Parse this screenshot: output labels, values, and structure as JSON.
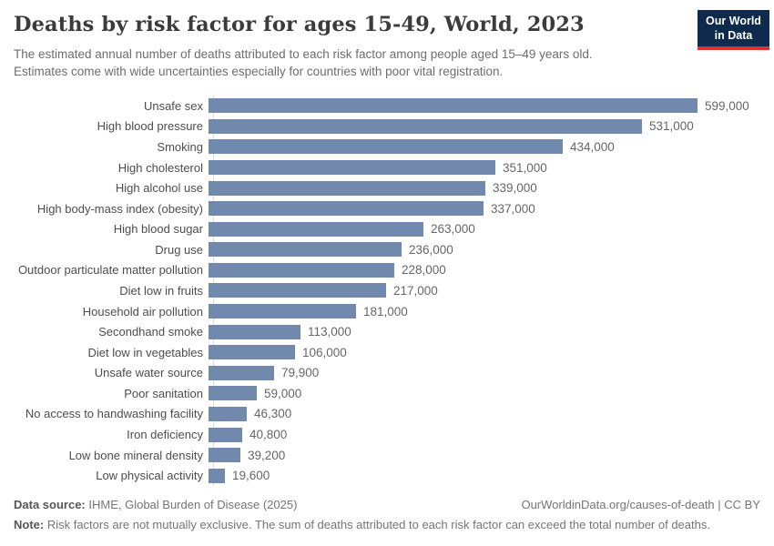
{
  "header": {
    "title": "Deaths by risk factor for ages 15-49, World, 2023",
    "subtitle_lines": [
      "The estimated annual number of deaths attributed to each risk factor among people aged 15–49 years old.",
      "Estimates come with wide uncertainties especially for countries with poor vital registration."
    ],
    "logo": {
      "line1": "Our World",
      "line2": "in Data",
      "bg_color": "#0e2a4d",
      "accent_color": "#d8352e"
    }
  },
  "chart_data": {
    "type": "bar",
    "orientation": "horizontal",
    "title": "Deaths by risk factor for ages 15-49, World, 2023",
    "xlabel": "",
    "ylabel": "",
    "xlim": [
      0,
      640000
    ],
    "grid": false,
    "legend": false,
    "bar_color": "#7289ae",
    "categories": [
      "Unsafe sex",
      "High blood pressure",
      "Smoking",
      "High cholesterol",
      "High alcohol use",
      "High body-mass index (obesity)",
      "High blood sugar",
      "Drug use",
      "Outdoor particulate matter pollution",
      "Diet low in fruits",
      "Household air pollution",
      "Secondhand smoke",
      "Diet low in vegetables",
      "Unsafe water source",
      "Poor sanitation",
      "No access to handwashing facility",
      "Iron deficiency",
      "Low bone mineral density",
      "Low physical activity"
    ],
    "values": [
      599000,
      531000,
      434000,
      351000,
      339000,
      337000,
      263000,
      236000,
      228000,
      217000,
      181000,
      113000,
      106000,
      79900,
      59000,
      46300,
      40800,
      39200,
      19600
    ],
    "value_labels": [
      "599,000",
      "531,000",
      "434,000",
      "351,000",
      "339,000",
      "337,000",
      "263,000",
      "236,000",
      "228,000",
      "217,000",
      "181,000",
      "113,000",
      "106,000",
      "79,900",
      "59,000",
      "46,300",
      "40,800",
      "39,200",
      "19,600"
    ]
  },
  "footer": {
    "datasource_label": "Data source:",
    "datasource_text": " IHME, Global Burden of Disease (2025)",
    "link_text": "OurWorldinData.org/causes-of-death | CC BY",
    "note_label": "Note:",
    "note_text": " Risk factors are not mutually exclusive. The sum of deaths attributed to each risk factor can exceed the total number of deaths."
  }
}
